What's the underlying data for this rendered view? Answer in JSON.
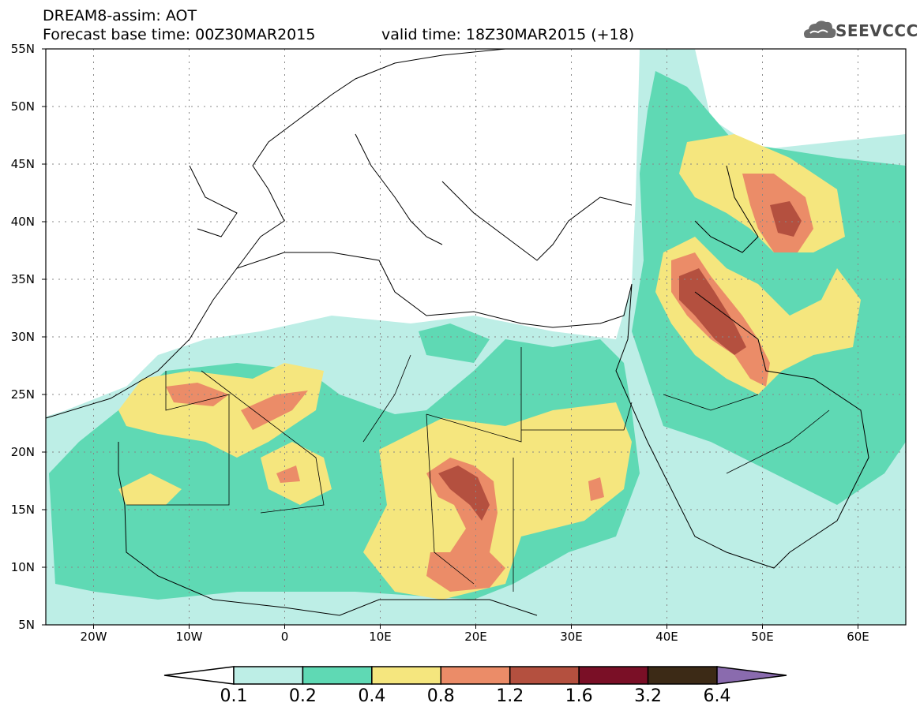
{
  "title": {
    "line1": "DREAM8-assim: AOT",
    "line2": "Forecast base time: 00Z30MAR2015",
    "line3": "valid time: 18Z30MAR2015 (+18)"
  },
  "logo": {
    "text": "SEEVCCC",
    "icon": "cloud-logo-icon"
  },
  "map": {
    "lon_range": [
      -25,
      65
    ],
    "lat_range": [
      5,
      55
    ],
    "lat_labels": [
      "55N",
      "50N",
      "45N",
      "40N",
      "35N",
      "30N",
      "25N",
      "20N",
      "15N",
      "10N",
      "5N"
    ],
    "lon_labels": [
      "20W",
      "10W",
      "0",
      "10E",
      "20E",
      "30E",
      "40E",
      "50E",
      "60E"
    ],
    "grid": "dotted"
  },
  "colorbar": {
    "levels": [
      "0.1",
      "0.2",
      "0.4",
      "0.8",
      "1.2",
      "1.6",
      "3.2",
      "6.4"
    ],
    "colors": [
      "#ffffff",
      "#bdeee6",
      "#5fd9b4",
      "#f5e67e",
      "#eb8c68",
      "#b4503f",
      "#7a0f26",
      "#3c2a16",
      "#8a6bae"
    ]
  }
}
